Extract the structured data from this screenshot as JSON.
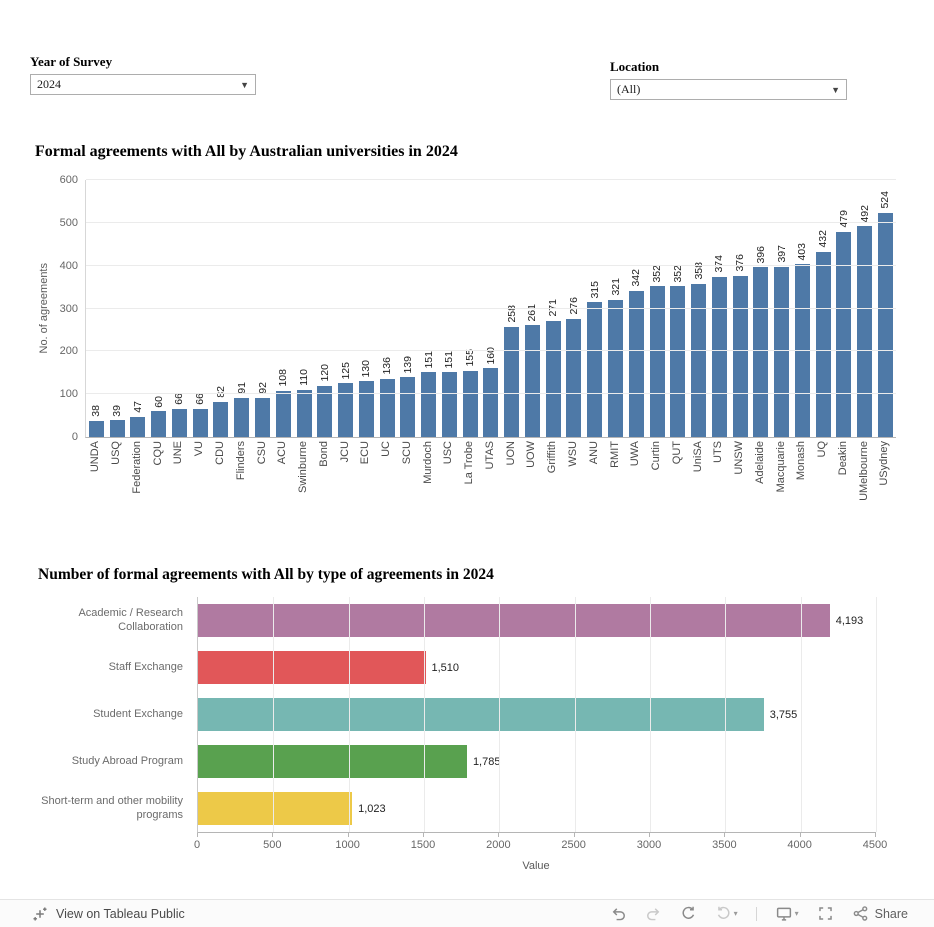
{
  "filters": {
    "year": {
      "label": "Year of Survey",
      "value": "2024"
    },
    "location": {
      "label": "Location",
      "value": "(All)"
    }
  },
  "chart_data": [
    {
      "type": "bar",
      "title": "Formal agreements with All by Australian universities in 2024",
      "ylabel": "No. of agreements",
      "ylim": [
        0,
        600
      ],
      "yticks": [
        0,
        100,
        200,
        300,
        400,
        500,
        600
      ],
      "bar_color": "#4e79a7",
      "grid": true,
      "categories": [
        "UNDA",
        "USQ",
        "Federation",
        "CQU",
        "UNE",
        "VU",
        "CDU",
        "Flinders",
        "CSU",
        "ACU",
        "Swinburne",
        "Bond",
        "JCU",
        "ECU",
        "UC",
        "SCU",
        "Murdoch",
        "USC",
        "La Trobe",
        "UTAS",
        "UON",
        "UOW",
        "Griffith",
        "WSU",
        "ANU",
        "RMIT",
        "UWA",
        "Curtin",
        "QUT",
        "UniSA",
        "UTS",
        "UNSW",
        "Adelaide",
        "Macquarie",
        "Monash",
        "UQ",
        "Deakin",
        "UMelbourne",
        "USydney"
      ],
      "values": [
        38,
        39,
        47,
        60,
        66,
        66,
        82,
        91,
        92,
        108,
        110,
        120,
        125,
        130,
        136,
        139,
        151,
        151,
        155,
        160,
        258,
        261,
        271,
        276,
        315,
        321,
        342,
        352,
        352,
        358,
        374,
        376,
        396,
        397,
        403,
        432,
        479,
        492,
        524
      ]
    },
    {
      "type": "bar",
      "orientation": "horizontal",
      "title": "Number of formal agreements with All by type of agreements in 2024",
      "xlabel": "Value",
      "xlim": [
        0,
        4500
      ],
      "xticks": [
        0,
        500,
        1000,
        1500,
        2000,
        2500,
        3000,
        3500,
        4000,
        4500
      ],
      "grid": true,
      "categories": [
        "Academic / Research Collaboration",
        "Staff Exchange",
        "Student Exchange",
        "Study Abroad Program",
        "Short-term and other mobility programs"
      ],
      "values": [
        4193,
        1510,
        3755,
        1785,
        1023
      ],
      "value_labels": [
        "4,193",
        "1,510",
        "3,755",
        "1,785",
        "1,023"
      ],
      "colors": [
        "#b07aa1",
        "#e15759",
        "#76b7b2",
        "#59a14f",
        "#edc948"
      ]
    }
  ],
  "toolbar": {
    "view_on": "View on Tableau Public",
    "share": "Share"
  }
}
